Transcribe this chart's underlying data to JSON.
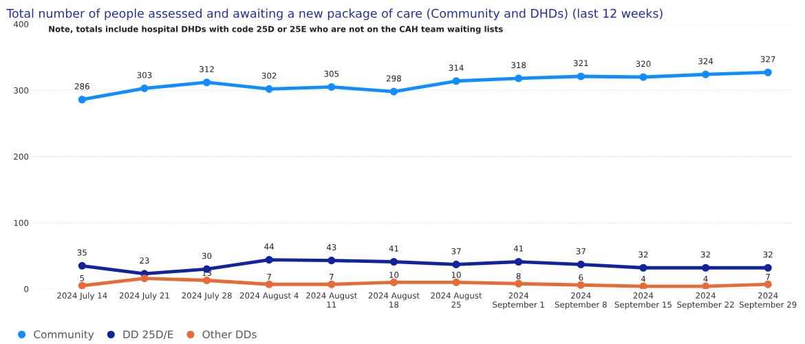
{
  "chart_data": {
    "type": "line",
    "title": "Total number of people assessed and awaiting a new package of care (Community and DHDs) (last 12 weeks)",
    "annotations": [
      "Note, totals include hospital DHDs with code 25D or 25E who are not on the CAH team waiting lists"
    ],
    "categories": [
      "2024 July 14",
      "2024 July 21",
      "2024 July 28",
      "2024 August 4",
      "2024 August 11",
      "2024 August 18",
      "2024 August 25",
      "2024 September 1",
      "2024 September 8",
      "2024 September 15",
      "2024 September 22",
      "2024 September 29"
    ],
    "series": [
      {
        "name": "Community",
        "color": "#118dff",
        "values": [
          286,
          303,
          312,
          302,
          305,
          298,
          314,
          318,
          321,
          320,
          324,
          327
        ]
      },
      {
        "name": "DD 25D/E",
        "color": "#12239e",
        "values": [
          35,
          23,
          30,
          44,
          43,
          41,
          37,
          41,
          37,
          32,
          32,
          32
        ]
      },
      {
        "name": "Other DDs",
        "color": "#e66c37",
        "values": [
          5,
          16,
          13,
          7,
          7,
          10,
          10,
          8,
          6,
          4,
          4,
          7
        ],
        "value_labels": [
          "5",
          null,
          "13",
          "7",
          "7",
          "10",
          "10",
          "8",
          "6",
          "4",
          "4",
          "7"
        ]
      }
    ],
    "ylim": [
      0,
      400
    ],
    "yticks": [
      0,
      100,
      200,
      300,
      400
    ],
    "grid": "y",
    "legend": "bottom left",
    "marker": "circle",
    "line_style": "solid",
    "data_labels": true
  }
}
